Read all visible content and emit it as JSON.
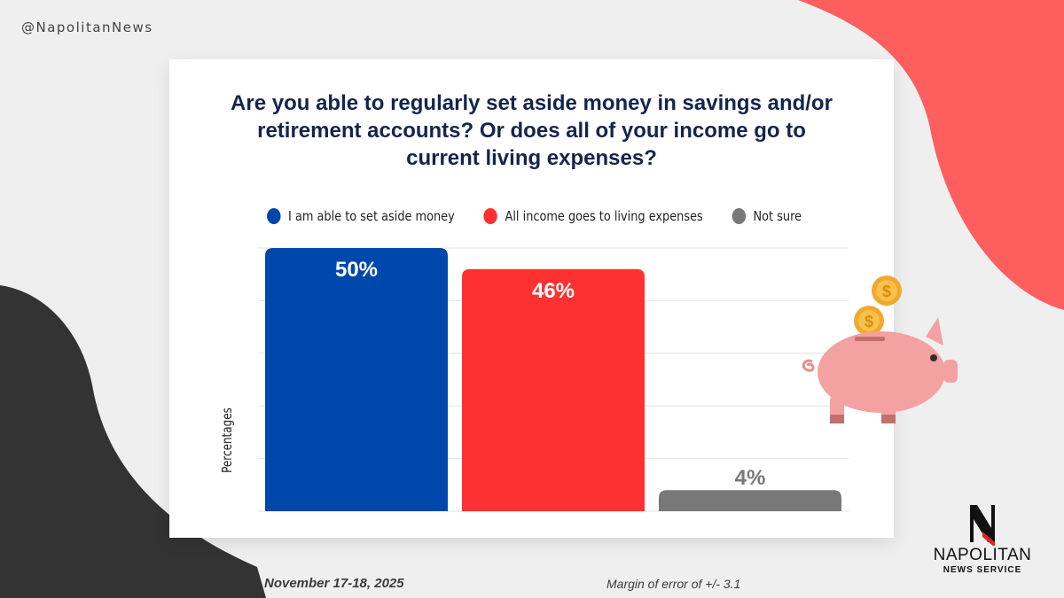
{
  "handle": "@NapolitanNews",
  "footer": {
    "date": "November 17-18, 2025",
    "margin_of_error": "Margin of error of +/- 3.1"
  },
  "logo": {
    "name": "NAPOLITAN",
    "subtitle": "NEWS SERVICE"
  },
  "colors": {
    "blue": "#0047ab",
    "red": "#fe3132",
    "gray": "#787878",
    "coral": "#fe5e5e",
    "dark": "#333333",
    "title": "#14254d"
  },
  "chart_data": {
    "type": "bar",
    "title": "Are you able to regularly set aside money in savings and/or retirement accounts? Or does all of your income go to current living expenses?",
    "ylabel": "Percentages",
    "xlabel": "",
    "ylim": [
      0,
      50
    ],
    "grid": true,
    "legend_position": "top",
    "categories": [
      "I am able to set aside money",
      "All income goes to living expenses",
      "Not sure"
    ],
    "values": [
      50,
      46,
      4
    ],
    "data_labels": [
      "50%",
      "46%",
      "4%"
    ],
    "series_colors": [
      "#0047ab",
      "#fe3132",
      "#787878"
    ]
  }
}
